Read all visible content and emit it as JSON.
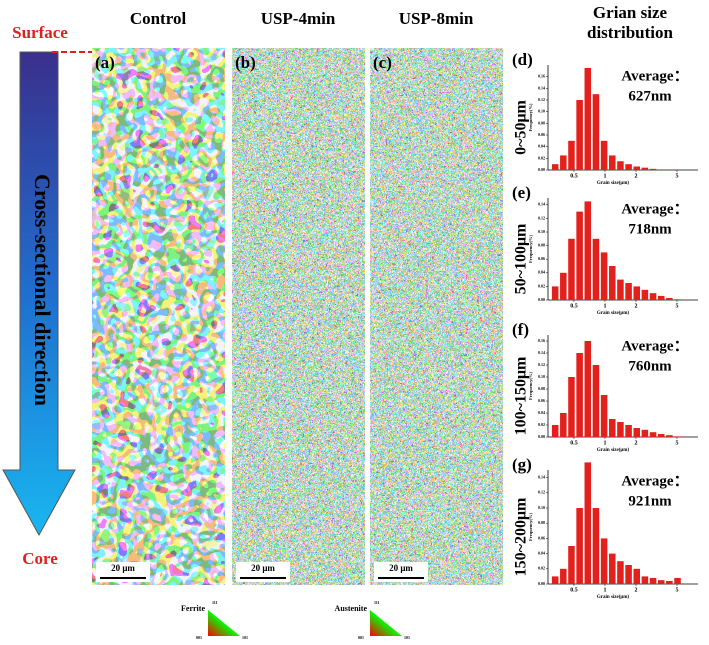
{
  "headings": [
    "Control",
    "USP-4min",
    "USP-8min"
  ],
  "distribution_heading": [
    "Grian size",
    "distribution"
  ],
  "surface": "Surface",
  "core": "Core",
  "direction": "Cross-sectional  direction",
  "map_labels": [
    "(a)",
    "(b)",
    "(c)"
  ],
  "scale_bars": [
    "20 μm",
    "20 μm",
    "20 μm"
  ],
  "legends": [
    {
      "phase": "Ferrite",
      "corners": [
        "111",
        "001",
        "101"
      ]
    },
    {
      "phase": "Austenite",
      "corners": [
        "111",
        "001",
        "101"
      ]
    }
  ],
  "chart_data": [
    {
      "type": "histogram",
      "panel": "(d)",
      "depth": "0~50μm",
      "annotation": [
        "Average：",
        "627nm"
      ],
      "xlabel": "Grain size(μm)",
      "ylabel": "Frequency(%)",
      "color": "#e3201c",
      "xscale": "log",
      "bins": [
        0.3,
        0.36,
        0.432,
        0.518,
        0.622,
        0.746,
        0.896,
        1.075,
        1.29,
        1.548,
        1.858,
        2.229,
        2.675,
        3.21,
        3.852,
        4.622,
        5.547
      ],
      "values": [
        0.01,
        0.025,
        0.05,
        0.12,
        0.175,
        0.13,
        0.05,
        0.025,
        0.015,
        0.01,
        0.006,
        0.004,
        0.002,
        0.001,
        0.001,
        0
      ],
      "xlim": [
        0.28,
        8
      ],
      "xticks": [
        0.5,
        1,
        2,
        5
      ],
      "ylim": [
        0,
        0.18
      ],
      "yticks": [
        {
          "value": 0,
          "label": "0.00"
        },
        {
          "value": 0.02,
          "label": "0.02"
        },
        {
          "value": 0.04,
          "label": "0.04"
        },
        {
          "value": 0.06,
          "label": "0.06"
        },
        {
          "value": 0.08,
          "label": "0.08"
        },
        {
          "value": 0.1,
          "label": "0.10"
        },
        {
          "value": 0.12,
          "label": "0.12"
        },
        {
          "value": 0.14,
          "label": "0.14"
        },
        {
          "value": 0.16,
          "label": "0.16"
        }
      ]
    },
    {
      "type": "histogram",
      "panel": "(e)",
      "depth": "50~100μm",
      "annotation": [
        "Average：",
        "718nm"
      ],
      "xlabel": "Grain size(μm)",
      "ylabel": "Frequency(%)",
      "color": "#e3201c",
      "xscale": "log",
      "bins": [
        0.3,
        0.36,
        0.432,
        0.518,
        0.622,
        0.746,
        0.896,
        1.075,
        1.29,
        1.548,
        1.858,
        2.229,
        2.675,
        3.21,
        3.852,
        4.622,
        5.547
      ],
      "values": [
        0.02,
        0.04,
        0.09,
        0.13,
        0.145,
        0.09,
        0.07,
        0.05,
        0.03,
        0.025,
        0.02,
        0.015,
        0.01,
        0.006,
        0.003,
        0.001
      ],
      "xlim": [
        0.28,
        8
      ],
      "xticks": [
        0.5,
        1,
        2,
        5
      ],
      "ylim": [
        0,
        0.15
      ],
      "yticks": [
        {
          "value": 0,
          "label": "0.00"
        },
        {
          "value": 0.02,
          "label": "0.02"
        },
        {
          "value": 0.04,
          "label": "0.04"
        },
        {
          "value": 0.06,
          "label": "0.06"
        },
        {
          "value": 0.08,
          "label": "0.08"
        },
        {
          "value": 0.1,
          "label": "0.10"
        },
        {
          "value": 0.12,
          "label": "0.12"
        },
        {
          "value": 0.14,
          "label": "0.14"
        }
      ]
    },
    {
      "type": "histogram",
      "panel": "(f)",
      "depth": "100~150μm",
      "annotation": [
        "Average：",
        "760nm"
      ],
      "xlabel": "Grain size(μm)",
      "ylabel": "Frequency(%)",
      "color": "#e3201c",
      "xscale": "log",
      "bins": [
        0.3,
        0.36,
        0.432,
        0.518,
        0.622,
        0.746,
        0.896,
        1.075,
        1.29,
        1.548,
        1.858,
        2.229,
        2.675,
        3.21,
        3.852,
        4.622,
        5.547
      ],
      "values": [
        0.02,
        0.04,
        0.1,
        0.14,
        0.16,
        0.12,
        0.07,
        0.03,
        0.025,
        0.02,
        0.015,
        0.012,
        0.008,
        0.005,
        0.003,
        0.001
      ],
      "xlim": [
        0.28,
        8
      ],
      "xticks": [
        0.5,
        1,
        2,
        5
      ],
      "ylim": [
        0,
        0.17
      ],
      "yticks": [
        {
          "value": 0,
          "label": "0.00"
        },
        {
          "value": 0.02,
          "label": "0.02"
        },
        {
          "value": 0.04,
          "label": "0.04"
        },
        {
          "value": 0.06,
          "label": "0.06"
        },
        {
          "value": 0.08,
          "label": "0.08"
        },
        {
          "value": 0.1,
          "label": "0.10"
        },
        {
          "value": 0.12,
          "label": "0.12"
        },
        {
          "value": 0.14,
          "label": "0.14"
        },
        {
          "value": 0.16,
          "label": "0.16"
        }
      ]
    },
    {
      "type": "histogram",
      "panel": "(g)",
      "depth": "150~200μm",
      "annotation": [
        "Average：",
        "921nm"
      ],
      "xlabel": "Grain size(μm)",
      "ylabel": "Frequency(%)",
      "color": "#e3201c",
      "xscale": "log",
      "bins": [
        0.3,
        0.36,
        0.432,
        0.518,
        0.622,
        0.746,
        0.896,
        1.075,
        1.29,
        1.548,
        1.858,
        2.229,
        2.675,
        3.21,
        3.852,
        4.622,
        5.547
      ],
      "values": [
        0.01,
        0.02,
        0.05,
        0.1,
        0.16,
        0.1,
        0.06,
        0.04,
        0.03,
        0.025,
        0.02,
        0.01,
        0.008,
        0.005,
        0.004,
        0.008
      ],
      "xlim": [
        0.28,
        8
      ],
      "xticks": [
        0.5,
        1,
        2,
        5
      ],
      "ylim": [
        0,
        0.15
      ],
      "yticks": [
        {
          "value": 0,
          "label": "0.00"
        },
        {
          "value": 0.02,
          "label": "0.02"
        },
        {
          "value": 0.04,
          "label": "0.04"
        },
        {
          "value": 0.06,
          "label": "0.06"
        },
        {
          "value": 0.08,
          "label": "0.08"
        },
        {
          "value": 0.1,
          "label": "0.10"
        },
        {
          "value": 0.12,
          "label": "0.12"
        },
        {
          "value": 0.14,
          "label": "0.14"
        }
      ]
    }
  ]
}
